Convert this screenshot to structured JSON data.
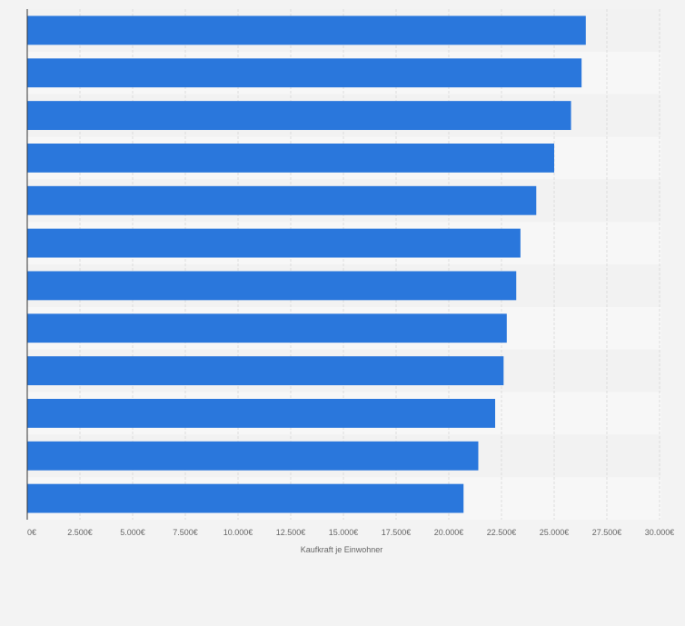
{
  "chart_data": {
    "type": "bar",
    "orientation": "horizontal",
    "title": "",
    "xlabel": "Kaufkraft je Einwohner",
    "ylabel": "",
    "xlim": [
      0,
      30000
    ],
    "grid": true,
    "categories": [
      "",
      "",
      "",
      "",
      "",
      "",
      "",
      "",
      "",
      "",
      "",
      ""
    ],
    "values": [
      26500,
      26300,
      25800,
      25000,
      24150,
      23400,
      23200,
      22750,
      22600,
      22200,
      21400,
      20700
    ],
    "x_ticks": [
      0,
      2500,
      5000,
      7500,
      10000,
      12500,
      15000,
      17500,
      20000,
      22500,
      25000,
      27500,
      30000
    ],
    "x_tick_labels": [
      "0€",
      "2.500€",
      "5.000€",
      "7.500€",
      "10.000€",
      "12.500€",
      "15.000€",
      "17.500€",
      "20.000€",
      "22.500€",
      "25.000€",
      "27.500€",
      "30.000€"
    ]
  },
  "colors": {
    "bar": "#2a77dc",
    "band_light": "#f7f7f7",
    "band_dark": "#f2f2f2",
    "grid": "#dcdcdc",
    "axis": "#333333",
    "text": "#666666"
  }
}
